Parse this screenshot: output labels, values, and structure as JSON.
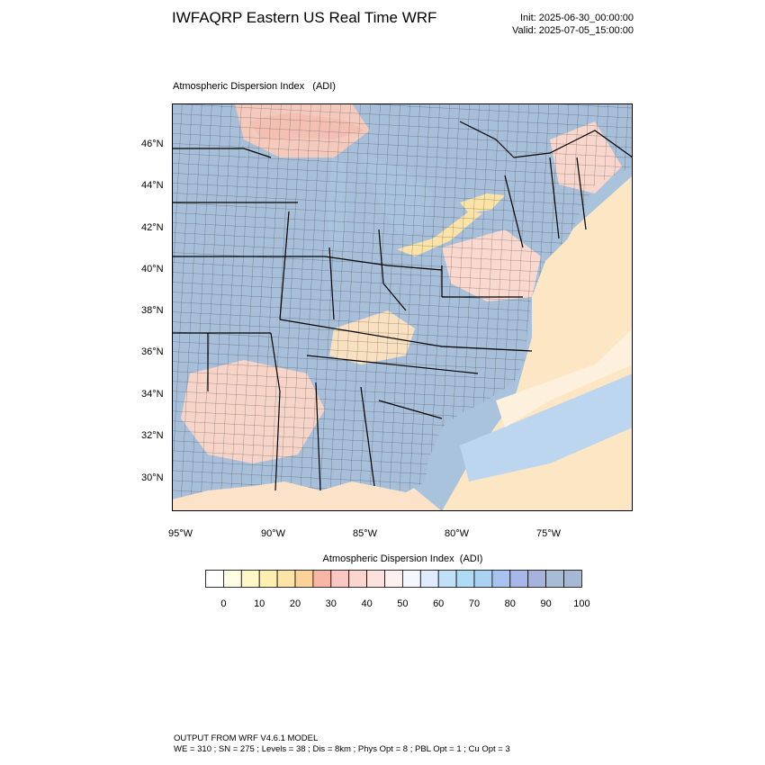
{
  "header": {
    "title": "IWFAQRP Eastern US Real Time WRF",
    "init": "Init: 2025-06-30_00:00:00",
    "valid": "Valid: 2025-07-05_15:00:00"
  },
  "panel": {
    "title": "Atmospheric Dispersion Index   (ADI)"
  },
  "map": {
    "lat_ticks": [
      "30°N",
      "32°N",
      "34°N",
      "36°N",
      "38°N",
      "40°N",
      "42°N",
      "44°N",
      "46°N"
    ],
    "lon_ticks": [
      "95°W",
      "90°W",
      "85°W",
      "80°W",
      "75°W"
    ],
    "colors": {
      "water": "#a9c3dc",
      "land_high": "#a7bfd9",
      "border": "#000000"
    }
  },
  "colorbar": {
    "title": "Atmospheric Dispersion Index  (ADI)",
    "tick_labels": [
      "0",
      "10",
      "20",
      "30",
      "40",
      "50",
      "60",
      "70",
      "80",
      "90",
      "100"
    ],
    "colors": [
      "#ffffff",
      "#fffde3",
      "#fff7c7",
      "#ffefb0",
      "#fde3a5",
      "#fbd29a",
      "#f7b6a6",
      "#f9c8c2",
      "#fbd5d0",
      "#fce2de",
      "#fdf0ee",
      "#f5f7ff",
      "#e1ebff",
      "#bfe0f7",
      "#aedcf5",
      "#a9d2f3",
      "#a9c3f0",
      "#a8b6ea",
      "#a7b3dc",
      "#a7bcd5",
      "#a5b9d6"
    ]
  },
  "footer": {
    "line1": "OUTPUT FROM WRF V4.6.1 MODEL",
    "line2": "WE = 310 ; SN = 275 ; Levels = 38 ; Dis = 8km ; Phys Opt = 8 ; PBL Opt = 1 ; Cu Opt = 3"
  }
}
